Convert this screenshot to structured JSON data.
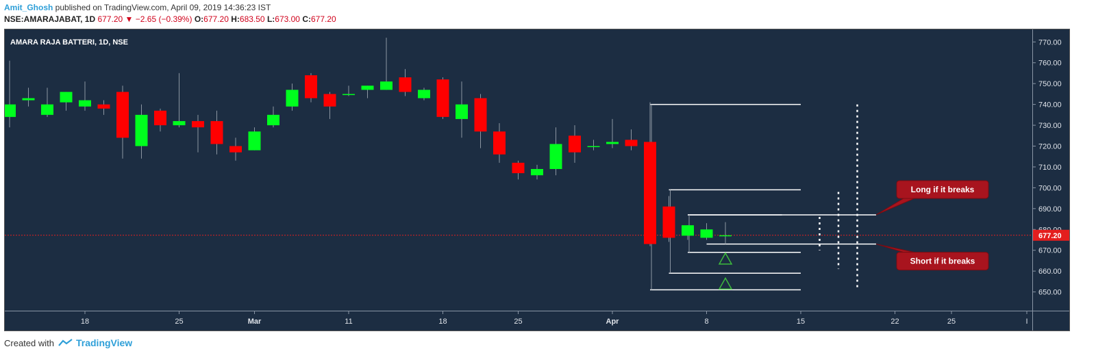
{
  "header": {
    "author": "Amit_Ghosh",
    "published_text": " published on TradingView.com, April 09, 2019 14:36:23 IST",
    "symbol_line": "NSE:AMARAJABAT, 1D",
    "last": "677.20",
    "change": "−2.65 (−0.39%)",
    "o_label": "O:",
    "o_value": "677.20",
    "h_label": "H:",
    "h_value": "683.50",
    "l_label": "L:",
    "l_value": "673.00",
    "c_label": "C:",
    "c_value": "677.20"
  },
  "footer": {
    "created_with": "Created with",
    "brand": "TradingView"
  },
  "colors": {
    "background": "#1c2d42",
    "up": "#00ff1e",
    "down": "#ff0000",
    "wick": "#8c96a2",
    "axis_text": "#e0e4ea",
    "price_tag": "#e41e1e",
    "annotation_fill": "#a8141e"
  },
  "chart_data": {
    "type": "candlestick",
    "title": "AMARA RAJA BATTERI, 1D, NSE",
    "ylim": [
      641,
      776
    ],
    "y_ticks": [
      650,
      660,
      670,
      680,
      690,
      700,
      710,
      720,
      730,
      740,
      750,
      760,
      770
    ],
    "y_tick_labels": [
      "650.00",
      "660.00",
      "670.00",
      "680.00",
      "690.00",
      "700.00",
      "710.00",
      "720.00",
      "730.00",
      "740.00",
      "750.00",
      "760.00",
      "770.00"
    ],
    "x_ticks": [
      {
        "label": "18",
        "index": 4
      },
      {
        "label": "25",
        "index": 9
      },
      {
        "label": "Mar",
        "index": 13,
        "bold": true
      },
      {
        "label": "11",
        "index": 18
      },
      {
        "label": "18",
        "index": 23
      },
      {
        "label": "25",
        "index": 27
      },
      {
        "label": "Apr",
        "index": 32,
        "bold": true
      },
      {
        "label": "8",
        "index": 37
      },
      {
        "label": "15",
        "index": 42
      },
      {
        "label": "22",
        "index": 47
      },
      {
        "label": "25",
        "index": 50
      },
      {
        "label": "I",
        "index": 54
      }
    ],
    "candles": [
      {
        "o": 734,
        "h": 761,
        "l": 729,
        "c": 740
      },
      {
        "o": 742,
        "h": 748,
        "l": 739,
        "c": 743
      },
      {
        "o": 735,
        "h": 748,
        "l": 734,
        "c": 740
      },
      {
        "o": 741,
        "h": 746,
        "l": 737,
        "c": 746
      },
      {
        "o": 739,
        "h": 751,
        "l": 737,
        "c": 742
      },
      {
        "o": 740,
        "h": 742,
        "l": 735,
        "c": 738
      },
      {
        "o": 746,
        "h": 749,
        "l": 714,
        "c": 724
      },
      {
        "o": 720,
        "h": 740,
        "l": 714,
        "c": 735
      },
      {
        "o": 737,
        "h": 738,
        "l": 727,
        "c": 730
      },
      {
        "o": 730,
        "h": 755,
        "l": 729,
        "c": 732
      },
      {
        "o": 732,
        "h": 735,
        "l": 717,
        "c": 729
      },
      {
        "o": 732,
        "h": 737,
        "l": 716,
        "c": 721
      },
      {
        "o": 720,
        "h": 724,
        "l": 713,
        "c": 717
      },
      {
        "o": 718,
        "h": 729,
        "l": 718,
        "c": 727
      },
      {
        "o": 730,
        "h": 739,
        "l": 729,
        "c": 735
      },
      {
        "o": 739,
        "h": 750,
        "l": 737,
        "c": 747
      },
      {
        "o": 754,
        "h": 755,
        "l": 741,
        "c": 743
      },
      {
        "o": 745,
        "h": 746,
        "l": 733,
        "c": 739
      },
      {
        "o": 745,
        "h": 749,
        "l": 744,
        "c": 745
      },
      {
        "o": 747,
        "h": 749,
        "l": 743,
        "c": 749
      },
      {
        "o": 747,
        "h": 772,
        "l": 747,
        "c": 751
      },
      {
        "o": 753,
        "h": 757,
        "l": 744,
        "c": 746
      },
      {
        "o": 743,
        "h": 748,
        "l": 742,
        "c": 747
      },
      {
        "o": 752,
        "h": 753,
        "l": 733,
        "c": 734
      },
      {
        "o": 733,
        "h": 751,
        "l": 724,
        "c": 740
      },
      {
        "o": 743,
        "h": 745,
        "l": 719,
        "c": 727
      },
      {
        "o": 727,
        "h": 731,
        "l": 712,
        "c": 716
      },
      {
        "o": 712,
        "h": 713,
        "l": 704,
        "c": 707
      },
      {
        "o": 706,
        "h": 711,
        "l": 704,
        "c": 709
      },
      {
        "o": 709,
        "h": 729,
        "l": 706,
        "c": 721
      },
      {
        "o": 725,
        "h": 730,
        "l": 712,
        "c": 717
      },
      {
        "o": 720,
        "h": 723,
        "l": 718,
        "c": 720
      },
      {
        "o": 721,
        "h": 733,
        "l": 719,
        "c": 722
      },
      {
        "o": 723,
        "h": 728,
        "l": 718,
        "c": 720
      },
      {
        "o": 722,
        "h": 741,
        "l": 672,
        "c": 673
      },
      {
        "o": 691,
        "h": 696,
        "l": 674,
        "c": 676
      },
      {
        "o": 677,
        "h": 682,
        "l": 675,
        "c": 682
      },
      {
        "o": 676,
        "h": 683,
        "l": 675,
        "c": 680
      },
      {
        "o": 677.2,
        "h": 683.5,
        "l": 673,
        "c": 677.2
      }
    ],
    "last_price": 677.2,
    "last_price_label": "677.20",
    "levels": [
      {
        "price": 740,
        "from": 34.0,
        "to": 42.0
      },
      {
        "price": 651,
        "from": 34.0,
        "to": 42.0
      },
      {
        "price": 699,
        "from": 35.0,
        "to": 42.0
      },
      {
        "price": 659,
        "from": 35.0,
        "to": 42.0
      },
      {
        "price": 687,
        "from": 36.0,
        "to": 41.0
      },
      {
        "price": 669,
        "from": 36.0,
        "to": 42.0
      },
      {
        "price": 687,
        "from": 36.0,
        "to": 46.0,
        "pointer": true
      },
      {
        "price": 673,
        "from": 37.0,
        "to": 46.0,
        "pointer": true
      }
    ],
    "dotted_lines": [
      {
        "index": 43,
        "from": 670,
        "to": 686
      },
      {
        "index": 44,
        "from": 661,
        "to": 698
      },
      {
        "index": 45,
        "from": 651,
        "to": 740
      }
    ],
    "triangles": [
      {
        "index": 38,
        "price": 666
      },
      {
        "index": 38,
        "price": 654
      }
    ],
    "annotations": [
      {
        "text": "Long if it breaks",
        "price": 687
      },
      {
        "text": "Short if it breaks",
        "price": 673
      }
    ]
  }
}
